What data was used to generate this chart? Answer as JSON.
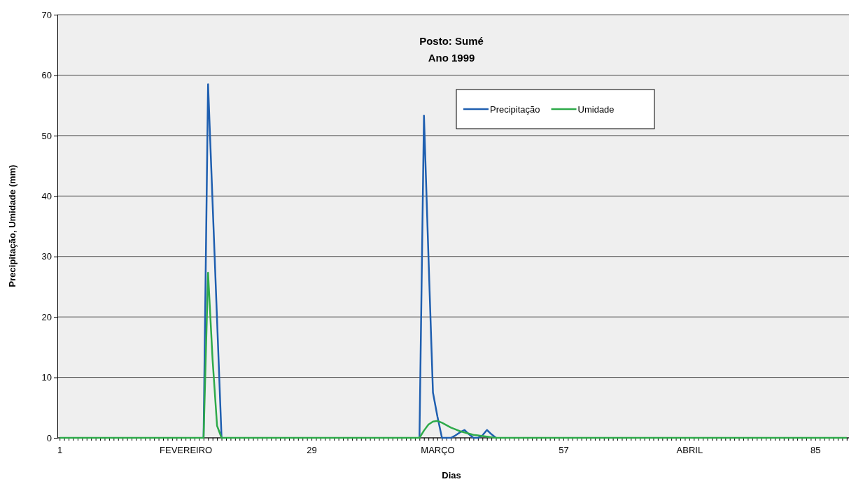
{
  "chart_data": {
    "type": "line",
    "title": "Posto: Sumé",
    "subtitle": "Ano 1999",
    "xlabel": "Dias",
    "ylabel": "Precipitação, Umidade (mm)",
    "categories": [
      "1",
      null,
      null,
      null,
      null,
      null,
      null,
      null,
      null,
      null,
      null,
      null,
      null,
      null,
      null,
      null,
      null,
      null,
      null,
      null,
      null,
      null,
      null,
      null,
      null,
      null,
      null,
      null,
      "FEVEREIRO",
      null,
      null,
      null,
      null,
      null,
      null,
      null,
      null,
      null,
      null,
      null,
      null,
      null,
      null,
      null,
      null,
      null,
      null,
      null,
      null,
      null,
      null,
      null,
      null,
      null,
      null,
      null,
      "29",
      null,
      null,
      null,
      null,
      null,
      null,
      null,
      null,
      null,
      null,
      null,
      null,
      null,
      null,
      null,
      null,
      null,
      null,
      null,
      null,
      null,
      null,
      null,
      null,
      null,
      null,
      null,
      "MARÇO",
      null,
      null,
      null,
      null,
      null,
      null,
      null,
      null,
      null,
      null,
      null,
      null,
      null,
      null,
      null,
      null,
      null,
      null,
      null,
      null,
      null,
      null,
      null,
      null,
      null,
      null,
      null,
      "57",
      null,
      null,
      null,
      null,
      null,
      null,
      null,
      null,
      null,
      null,
      null,
      null,
      null,
      null,
      null,
      null,
      null,
      null,
      null,
      null,
      null,
      null,
      null,
      null,
      null,
      null,
      null,
      "ABRIL",
      null,
      null,
      null,
      null,
      null,
      null,
      null,
      null,
      null,
      null,
      null,
      null,
      null,
      null,
      null,
      null,
      null,
      null,
      null,
      null,
      null,
      null,
      null,
      null,
      null,
      null,
      null,
      "85",
      null,
      null,
      null,
      null,
      null,
      null,
      null
    ],
    "series": [
      {
        "name": "Precipitação",
        "color": "#1f5fb0",
        "values": [
          null,
          null,
          null,
          null,
          null,
          null,
          null,
          null,
          null,
          null,
          null,
          null,
          null,
          null,
          null,
          null,
          null,
          null,
          null,
          null,
          null,
          null,
          null,
          null,
          null,
          null,
          null,
          null,
          null,
          null,
          null,
          null,
          0,
          58.5,
          39,
          19.5,
          0,
          null,
          null,
          null,
          null,
          null,
          null,
          null,
          null,
          null,
          null,
          null,
          null,
          null,
          null,
          null,
          null,
          null,
          null,
          null,
          null,
          null,
          null,
          null,
          null,
          null,
          null,
          null,
          null,
          null,
          null,
          null,
          null,
          null,
          null,
          null,
          null,
          null,
          null,
          null,
          null,
          null,
          null,
          null,
          0,
          53.3,
          30,
          7.5,
          3.5,
          0,
          0,
          0,
          0.4,
          0.9,
          1.3,
          0.6,
          0,
          0,
          0.4,
          1.3,
          0.6,
          0,
          null,
          null,
          null,
          null,
          null,
          null,
          null,
          null,
          null,
          null,
          null,
          null,
          null,
          null,
          null,
          null,
          null,
          null,
          null,
          null,
          null,
          null,
          null,
          null,
          null,
          null,
          null,
          null,
          null,
          null,
          null,
          null,
          null,
          null,
          null,
          null,
          null,
          null,
          null,
          null,
          null,
          null,
          null,
          null,
          null,
          null,
          null,
          null,
          null,
          null,
          null,
          null,
          null,
          null,
          null,
          null,
          null,
          null,
          null,
          null,
          null,
          null,
          null,
          null,
          null,
          null,
          null,
          null,
          null,
          null,
          null,
          null,
          null,
          null,
          null,
          null,
          null,
          null
        ]
      },
      {
        "name": "Umidade",
        "color": "#2eaa4a",
        "values": [
          0,
          0,
          0,
          0,
          0,
          0,
          0,
          0,
          0,
          0,
          0,
          0,
          0,
          0,
          0,
          0,
          0,
          0,
          0,
          0,
          0,
          0,
          0,
          0,
          0,
          0,
          0,
          0,
          0,
          0,
          0,
          0,
          0,
          27.3,
          13,
          2,
          0,
          0,
          0,
          0,
          0,
          0,
          0,
          0,
          0,
          0,
          0,
          0,
          0,
          0,
          0,
          0,
          0,
          0,
          0,
          0,
          0,
          0,
          0,
          0,
          0,
          0,
          0,
          0,
          0,
          0,
          0,
          0,
          0,
          0,
          0,
          0,
          0,
          0,
          0,
          0,
          0,
          0,
          0,
          0,
          0,
          1.2,
          2.2,
          2.7,
          2.8,
          2.5,
          2.1,
          1.7,
          1.4,
          1.1,
          0.9,
          0.7,
          0.5,
          0.4,
          0.3,
          0.2,
          0.1,
          0,
          0,
          0,
          0,
          0,
          0,
          0,
          0,
          0,
          0,
          0,
          0,
          0,
          0,
          0,
          0,
          0,
          0,
          0,
          0,
          0,
          0,
          0,
          0,
          0,
          0,
          0,
          0,
          0,
          0,
          0,
          0,
          0,
          0,
          0,
          0,
          0,
          0,
          0,
          0,
          0,
          0,
          0,
          0,
          0,
          0,
          0,
          0,
          0,
          0,
          0,
          0,
          0,
          0,
          0,
          0,
          0,
          0,
          0,
          0,
          0,
          0,
          0,
          0,
          0,
          0,
          0,
          0,
          0,
          0,
          0,
          0,
          0,
          0,
          0,
          0,
          0,
          0,
          0
        ]
      }
    ],
    "ylim": [
      0,
      70
    ],
    "yticks": [
      0,
      10,
      20,
      30,
      40,
      50,
      60,
      70
    ],
    "grid": "y",
    "legend": "top",
    "line_style": "solid",
    "marker": "none"
  }
}
